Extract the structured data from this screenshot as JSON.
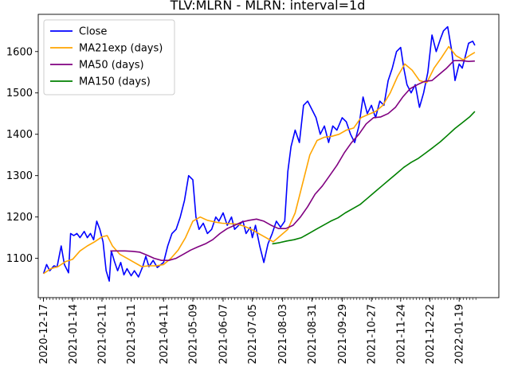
{
  "chart_data": {
    "type": "line",
    "title": "TLV:MLRN - MLRN: interval=1d",
    "xlabel": "",
    "ylabel": "",
    "ylim": [
      1005,
      1690
    ],
    "xlim": [
      "2020-12-12",
      "2022-02-26"
    ],
    "y_ticks": [
      1100,
      1200,
      1300,
      1400,
      1500,
      1600
    ],
    "x_ticks": [
      "2020-12-17",
      "2021-01-14",
      "2021-02-11",
      "2021-03-11",
      "2021-04-11",
      "2021-05-09",
      "2021-06-07",
      "2021-07-05",
      "2021-08-03",
      "2021-08-31",
      "2021-09-29",
      "2021-10-27",
      "2021-11-24",
      "2021-12-22",
      "2022-01-19"
    ],
    "legend_position": "top-left",
    "grid": false,
    "series": [
      {
        "name": "Close",
        "color": "#0000ff",
        "points": [
          [
            "2020-12-17",
            1063
          ],
          [
            "2020-12-20",
            1085
          ],
          [
            "2020-12-23",
            1070
          ],
          [
            "2020-12-27",
            1082
          ],
          [
            "2020-12-30",
            1079
          ],
          [
            "2021-01-03",
            1130
          ],
          [
            "2021-01-06",
            1085
          ],
          [
            "2021-01-10",
            1065
          ],
          [
            "2021-01-12",
            1160
          ],
          [
            "2021-01-15",
            1155
          ],
          [
            "2021-01-18",
            1160
          ],
          [
            "2021-01-21",
            1150
          ],
          [
            "2021-01-25",
            1165
          ],
          [
            "2021-01-28",
            1150
          ],
          [
            "2021-01-31",
            1160
          ],
          [
            "2021-02-03",
            1145
          ],
          [
            "2021-02-06",
            1190
          ],
          [
            "2021-02-09",
            1170
          ],
          [
            "2021-02-12",
            1140
          ],
          [
            "2021-02-15",
            1070
          ],
          [
            "2021-02-18",
            1045
          ],
          [
            "2021-02-20",
            1118
          ],
          [
            "2021-02-23",
            1092
          ],
          [
            "2021-02-26",
            1070
          ],
          [
            "2021-03-01",
            1090
          ],
          [
            "2021-03-04",
            1060
          ],
          [
            "2021-03-07",
            1075
          ],
          [
            "2021-03-11",
            1058
          ],
          [
            "2021-03-14",
            1070
          ],
          [
            "2021-03-18",
            1055
          ],
          [
            "2021-03-22",
            1080
          ],
          [
            "2021-03-25",
            1105
          ],
          [
            "2021-03-28",
            1080
          ],
          [
            "2021-04-01",
            1095
          ],
          [
            "2021-04-05",
            1078
          ],
          [
            "2021-04-11",
            1090
          ],
          [
            "2021-04-15",
            1130
          ],
          [
            "2021-04-19",
            1160
          ],
          [
            "2021-04-23",
            1170
          ],
          [
            "2021-04-27",
            1200
          ],
          [
            "2021-05-01",
            1240
          ],
          [
            "2021-05-05",
            1300
          ],
          [
            "2021-05-09",
            1290
          ],
          [
            "2021-05-12",
            1200
          ],
          [
            "2021-05-15",
            1170
          ],
          [
            "2021-05-19",
            1185
          ],
          [
            "2021-05-23",
            1160
          ],
          [
            "2021-05-27",
            1170
          ],
          [
            "2021-05-31",
            1200
          ],
          [
            "2021-06-03",
            1190
          ],
          [
            "2021-06-07",
            1210
          ],
          [
            "2021-06-11",
            1180
          ],
          [
            "2021-06-15",
            1200
          ],
          [
            "2021-06-18",
            1170
          ],
          [
            "2021-06-22",
            1180
          ],
          [
            "2021-06-26",
            1190
          ],
          [
            "2021-06-29",
            1160
          ],
          [
            "2021-07-03",
            1175
          ],
          [
            "2021-07-05",
            1150
          ],
          [
            "2021-07-08",
            1180
          ],
          [
            "2021-07-12",
            1130
          ],
          [
            "2021-07-16",
            1090
          ],
          [
            "2021-07-20",
            1135
          ],
          [
            "2021-07-24",
            1160
          ],
          [
            "2021-07-28",
            1190
          ],
          [
            "2021-08-01",
            1175
          ],
          [
            "2021-08-05",
            1190
          ],
          [
            "2021-08-08",
            1310
          ],
          [
            "2021-08-11",
            1370
          ],
          [
            "2021-08-15",
            1410
          ],
          [
            "2021-08-19",
            1380
          ],
          [
            "2021-08-23",
            1470
          ],
          [
            "2021-08-27",
            1480
          ],
          [
            "2021-08-31",
            1460
          ],
          [
            "2021-09-04",
            1440
          ],
          [
            "2021-09-08",
            1400
          ],
          [
            "2021-09-12",
            1420
          ],
          [
            "2021-09-16",
            1380
          ],
          [
            "2021-09-20",
            1420
          ],
          [
            "2021-09-24",
            1410
          ],
          [
            "2021-09-29",
            1440
          ],
          [
            "2021-10-03",
            1430
          ],
          [
            "2021-10-07",
            1400
          ],
          [
            "2021-10-11",
            1380
          ],
          [
            "2021-10-15",
            1420
          ],
          [
            "2021-10-19",
            1490
          ],
          [
            "2021-10-23",
            1450
          ],
          [
            "2021-10-27",
            1470
          ],
          [
            "2021-10-31",
            1440
          ],
          [
            "2021-11-04",
            1480
          ],
          [
            "2021-11-08",
            1470
          ],
          [
            "2021-11-12",
            1530
          ],
          [
            "2021-11-16",
            1560
          ],
          [
            "2021-11-20",
            1600
          ],
          [
            "2021-11-24",
            1610
          ],
          [
            "2021-11-27",
            1560
          ],
          [
            "2021-11-30",
            1520
          ],
          [
            "2021-12-04",
            1500
          ],
          [
            "2021-12-08",
            1520
          ],
          [
            "2021-12-12",
            1465
          ],
          [
            "2021-12-16",
            1500
          ],
          [
            "2021-12-20",
            1550
          ],
          [
            "2021-12-24",
            1640
          ],
          [
            "2021-12-28",
            1600
          ],
          [
            "2022-01-01",
            1630
          ],
          [
            "2022-01-04",
            1650
          ],
          [
            "2022-01-08",
            1660
          ],
          [
            "2022-01-12",
            1600
          ],
          [
            "2022-01-15",
            1530
          ],
          [
            "2022-01-19",
            1570
          ],
          [
            "2022-01-22",
            1560
          ],
          [
            "2022-01-25",
            1590
          ],
          [
            "2022-01-28",
            1620
          ],
          [
            "2022-02-01",
            1625
          ],
          [
            "2022-02-03",
            1615
          ]
        ]
      },
      {
        "name": "MA21exp (days)",
        "color": "#ffa500",
        "points": [
          [
            "2020-12-17",
            1063
          ],
          [
            "2020-12-24",
            1075
          ],
          [
            "2020-12-31",
            1080
          ],
          [
            "2021-01-07",
            1092
          ],
          [
            "2021-01-14",
            1098
          ],
          [
            "2021-01-21",
            1118
          ],
          [
            "2021-01-28",
            1130
          ],
          [
            "2021-02-04",
            1140
          ],
          [
            "2021-02-11",
            1152
          ],
          [
            "2021-02-16",
            1155
          ],
          [
            "2021-02-21",
            1130
          ],
          [
            "2021-02-28",
            1110
          ],
          [
            "2021-03-07",
            1100
          ],
          [
            "2021-03-14",
            1090
          ],
          [
            "2021-03-21",
            1080
          ],
          [
            "2021-03-28",
            1082
          ],
          [
            "2021-04-04",
            1082
          ],
          [
            "2021-04-11",
            1085
          ],
          [
            "2021-04-18",
            1100
          ],
          [
            "2021-04-25",
            1120
          ],
          [
            "2021-05-02",
            1150
          ],
          [
            "2021-05-09",
            1190
          ],
          [
            "2021-05-16",
            1200
          ],
          [
            "2021-05-23",
            1192
          ],
          [
            "2021-05-30",
            1188
          ],
          [
            "2021-06-06",
            1185
          ],
          [
            "2021-06-13",
            1184
          ],
          [
            "2021-06-20",
            1183
          ],
          [
            "2021-06-27",
            1178
          ],
          [
            "2021-07-04",
            1170
          ],
          [
            "2021-07-11",
            1160
          ],
          [
            "2021-07-18",
            1150
          ],
          [
            "2021-07-25",
            1140
          ],
          [
            "2021-08-01",
            1155
          ],
          [
            "2021-08-08",
            1170
          ],
          [
            "2021-08-15",
            1210
          ],
          [
            "2021-08-22",
            1280
          ],
          [
            "2021-08-29",
            1350
          ],
          [
            "2021-09-05",
            1385
          ],
          [
            "2021-09-12",
            1393
          ],
          [
            "2021-09-19",
            1395
          ],
          [
            "2021-09-26",
            1400
          ],
          [
            "2021-10-03",
            1410
          ],
          [
            "2021-10-10",
            1415
          ],
          [
            "2021-10-17",
            1440
          ],
          [
            "2021-10-24",
            1448
          ],
          [
            "2021-10-31",
            1455
          ],
          [
            "2021-11-07",
            1470
          ],
          [
            "2021-11-14",
            1500
          ],
          [
            "2021-11-21",
            1540
          ],
          [
            "2021-11-28",
            1570
          ],
          [
            "2021-12-05",
            1555
          ],
          [
            "2021-12-12",
            1530
          ],
          [
            "2021-12-19",
            1525
          ],
          [
            "2021-12-26",
            1560
          ],
          [
            "2022-01-02",
            1585
          ],
          [
            "2022-01-09",
            1612
          ],
          [
            "2022-01-16",
            1590
          ],
          [
            "2022-01-23",
            1580
          ],
          [
            "2022-01-30",
            1592
          ],
          [
            "2022-02-03",
            1598
          ]
        ]
      },
      {
        "name": "MA50 (days)",
        "color": "#800080",
        "points": [
          [
            "2021-02-19",
            1118
          ],
          [
            "2021-02-26",
            1118
          ],
          [
            "2021-03-05",
            1118
          ],
          [
            "2021-03-12",
            1117
          ],
          [
            "2021-03-19",
            1115
          ],
          [
            "2021-03-26",
            1108
          ],
          [
            "2021-04-02",
            1100
          ],
          [
            "2021-04-09",
            1095
          ],
          [
            "2021-04-16",
            1095
          ],
          [
            "2021-04-23",
            1100
          ],
          [
            "2021-04-30",
            1110
          ],
          [
            "2021-05-07",
            1120
          ],
          [
            "2021-05-14",
            1128
          ],
          [
            "2021-05-21",
            1135
          ],
          [
            "2021-05-28",
            1145
          ],
          [
            "2021-06-04",
            1160
          ],
          [
            "2021-06-11",
            1172
          ],
          [
            "2021-06-18",
            1180
          ],
          [
            "2021-06-25",
            1188
          ],
          [
            "2021-07-02",
            1192
          ],
          [
            "2021-07-09",
            1195
          ],
          [
            "2021-07-16",
            1190
          ],
          [
            "2021-07-23",
            1180
          ],
          [
            "2021-07-30",
            1172
          ],
          [
            "2021-08-06",
            1172
          ],
          [
            "2021-08-13",
            1180
          ],
          [
            "2021-08-20",
            1200
          ],
          [
            "2021-08-27",
            1225
          ],
          [
            "2021-09-03",
            1255
          ],
          [
            "2021-09-10",
            1275
          ],
          [
            "2021-09-17",
            1300
          ],
          [
            "2021-09-24",
            1325
          ],
          [
            "2021-10-01",
            1355
          ],
          [
            "2021-10-08",
            1380
          ],
          [
            "2021-10-15",
            1400
          ],
          [
            "2021-10-22",
            1425
          ],
          [
            "2021-10-29",
            1440
          ],
          [
            "2021-11-05",
            1442
          ],
          [
            "2021-11-12",
            1450
          ],
          [
            "2021-11-19",
            1465
          ],
          [
            "2021-11-26",
            1490
          ],
          [
            "2021-12-03",
            1510
          ],
          [
            "2021-12-10",
            1520
          ],
          [
            "2021-12-17",
            1528
          ],
          [
            "2021-12-24",
            1530
          ],
          [
            "2021-12-31",
            1545
          ],
          [
            "2022-01-07",
            1560
          ],
          [
            "2022-01-14",
            1578
          ],
          [
            "2022-01-21",
            1578
          ],
          [
            "2022-01-28",
            1576
          ],
          [
            "2022-02-03",
            1577
          ]
        ]
      },
      {
        "name": "MA150 (days)",
        "color": "#008000",
        "points": [
          [
            "2021-07-24",
            1135
          ],
          [
            "2021-07-31",
            1138
          ],
          [
            "2021-08-07",
            1142
          ],
          [
            "2021-08-14",
            1145
          ],
          [
            "2021-08-21",
            1150
          ],
          [
            "2021-08-28",
            1160
          ],
          [
            "2021-09-04",
            1170
          ],
          [
            "2021-09-11",
            1180
          ],
          [
            "2021-09-18",
            1190
          ],
          [
            "2021-09-25",
            1198
          ],
          [
            "2021-10-02",
            1210
          ],
          [
            "2021-10-09",
            1220
          ],
          [
            "2021-10-16",
            1230
          ],
          [
            "2021-10-23",
            1245
          ],
          [
            "2021-10-30",
            1260
          ],
          [
            "2021-11-06",
            1275
          ],
          [
            "2021-11-13",
            1290
          ],
          [
            "2021-11-20",
            1305
          ],
          [
            "2021-11-27",
            1320
          ],
          [
            "2021-12-04",
            1332
          ],
          [
            "2021-12-11",
            1342
          ],
          [
            "2021-12-18",
            1355
          ],
          [
            "2021-12-25",
            1368
          ],
          [
            "2022-01-01",
            1382
          ],
          [
            "2022-01-08",
            1398
          ],
          [
            "2022-01-15",
            1414
          ],
          [
            "2022-01-22",
            1428
          ],
          [
            "2022-01-29",
            1442
          ],
          [
            "2022-02-03",
            1455
          ]
        ]
      }
    ]
  }
}
